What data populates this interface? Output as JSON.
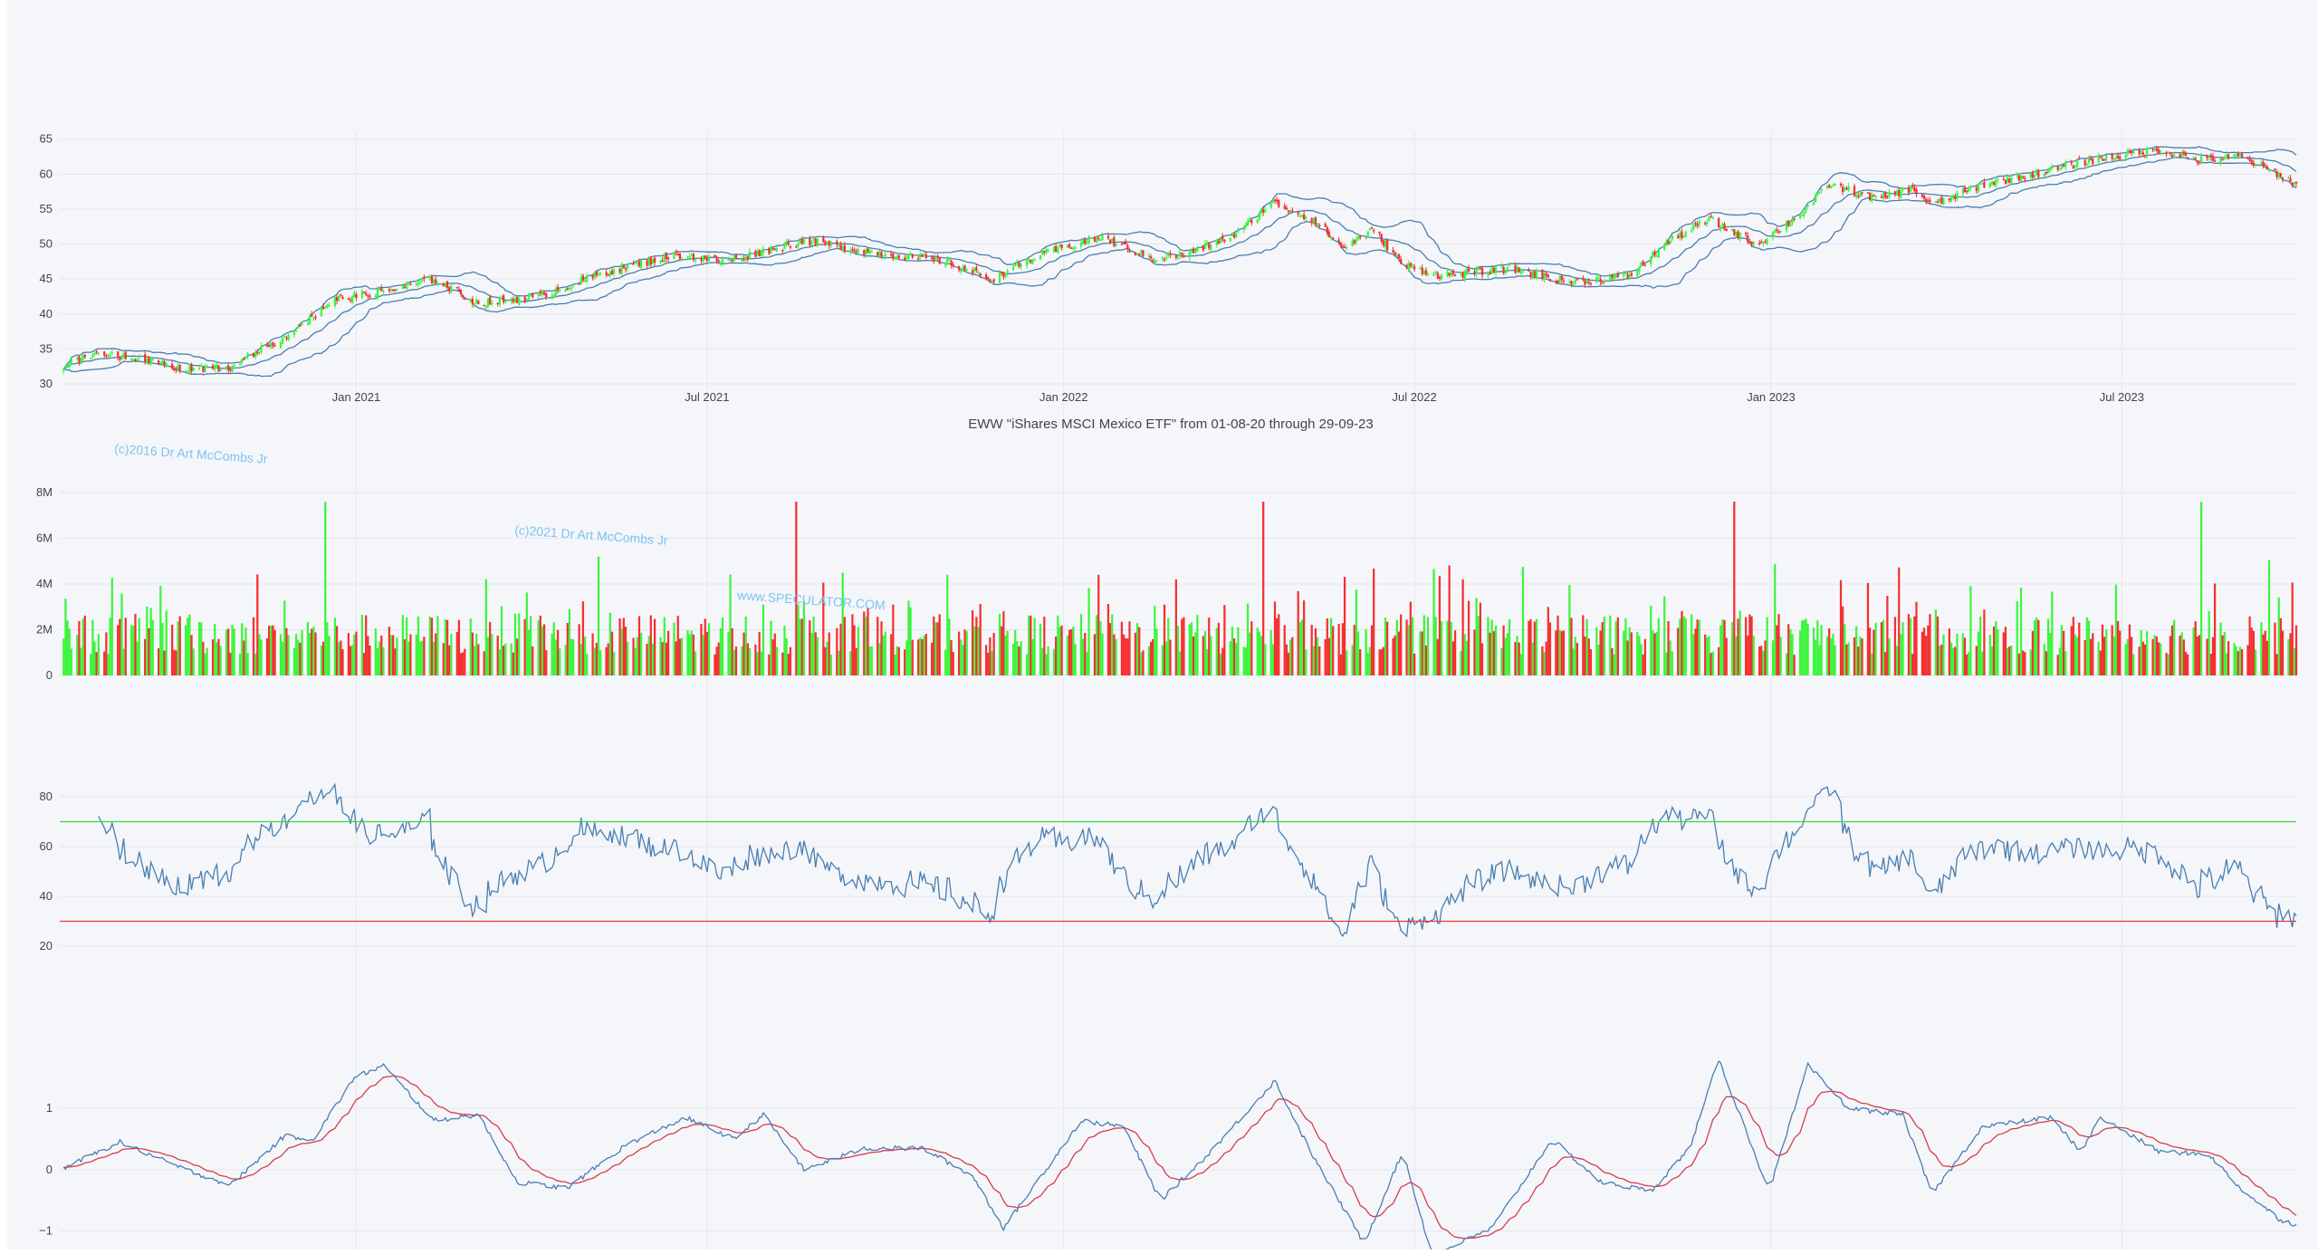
{
  "chart_data": {
    "type": "candlestick",
    "title": "EWW \"iShares MSCI Mexico ETF\" from 01-08-20 through 29-09-23",
    "x_range": [
      "2020-08-01",
      "2023-09-29"
    ],
    "x_tick_labels": [
      {
        "date": "2021-01-01",
        "label": "Jan 2021"
      },
      {
        "date": "2021-07-01",
        "label": "Jul 2021"
      },
      {
        "date": "2022-01-01",
        "label": "Jan 2022"
      },
      {
        "date": "2022-07-01",
        "label": "Jul 2022"
      },
      {
        "date": "2023-01-01",
        "label": "Jan 2023"
      },
      {
        "date": "2023-07-01",
        "label": "Jul 2023"
      }
    ],
    "watermarks": [
      "(c)2016 Dr Art McCombs Jr",
      "(c)2021 Dr Art McCombs Jr",
      "www.SPECULATOR.COM"
    ],
    "colors": {
      "up": "#3df53d",
      "down": "#f53030",
      "line": "#4a7eb0",
      "signal": "#d83c4a",
      "rsi_upper": "#3dd63d",
      "rsi_lower": "#e03a3a",
      "grid": "#e4e7ee",
      "background": "#f4f6fa"
    },
    "price_panel": {
      "ylim": [
        30,
        66
      ],
      "y_ticks": [
        "30",
        "35",
        "40",
        "45",
        "50",
        "55",
        "60",
        "65"
      ],
      "bollinger_bands": true,
      "close_anchors": [
        {
          "date": "2020-08-01",
          "value": 32.5
        },
        {
          "date": "2020-08-20",
          "value": 34.5
        },
        {
          "date": "2020-09-20",
          "value": 33.0
        },
        {
          "date": "2020-10-10",
          "value": 32.0
        },
        {
          "date": "2020-10-28",
          "value": 32.5
        },
        {
          "date": "2020-11-20",
          "value": 36.0
        },
        {
          "date": "2020-12-05",
          "value": 38.5
        },
        {
          "date": "2020-12-20",
          "value": 42.0
        },
        {
          "date": "2021-01-20",
          "value": 43.5
        },
        {
          "date": "2021-02-10",
          "value": 45.0
        },
        {
          "date": "2021-03-05",
          "value": 41.5
        },
        {
          "date": "2021-04-05",
          "value": 42.5
        },
        {
          "date": "2021-05-10",
          "value": 46.0
        },
        {
          "date": "2021-06-15",
          "value": 48.5
        },
        {
          "date": "2021-07-10",
          "value": 47.5
        },
        {
          "date": "2021-08-20",
          "value": 50.5
        },
        {
          "date": "2021-09-20",
          "value": 49.0
        },
        {
          "date": "2021-11-01",
          "value": 47.5
        },
        {
          "date": "2021-11-25",
          "value": 45.0
        },
        {
          "date": "2021-12-20",
          "value": 48.5
        },
        {
          "date": "2022-01-20",
          "value": 51.0
        },
        {
          "date": "2022-02-15",
          "value": 48.0
        },
        {
          "date": "2022-03-05",
          "value": 48.5
        },
        {
          "date": "2022-04-01",
          "value": 51.5
        },
        {
          "date": "2022-04-18",
          "value": 56.0
        },
        {
          "date": "2022-05-10",
          "value": 53.5
        },
        {
          "date": "2022-05-25",
          "value": 49.5
        },
        {
          "date": "2022-06-10",
          "value": 52.0
        },
        {
          "date": "2022-06-25",
          "value": 47.0
        },
        {
          "date": "2022-07-15",
          "value": 45.5
        },
        {
          "date": "2022-08-20",
          "value": 46.5
        },
        {
          "date": "2022-09-20",
          "value": 44.5
        },
        {
          "date": "2022-10-20",
          "value": 45.5
        },
        {
          "date": "2022-11-10",
          "value": 50.5
        },
        {
          "date": "2022-11-30",
          "value": 53.5
        },
        {
          "date": "2022-12-25",
          "value": 50.0
        },
        {
          "date": "2023-01-15",
          "value": 54.0
        },
        {
          "date": "2023-01-31",
          "value": 58.5
        },
        {
          "date": "2023-02-25",
          "value": 56.5
        },
        {
          "date": "2023-03-15",
          "value": 58.0
        },
        {
          "date": "2023-03-25",
          "value": 55.5
        },
        {
          "date": "2023-04-20",
          "value": 58.5
        },
        {
          "date": "2023-05-25",
          "value": 60.5
        },
        {
          "date": "2023-06-15",
          "value": 62.0
        },
        {
          "date": "2023-07-20",
          "value": 63.5
        },
        {
          "date": "2023-08-10",
          "value": 62.0
        },
        {
          "date": "2023-08-31",
          "value": 62.5
        },
        {
          "date": "2023-09-20",
          "value": 60.0
        },
        {
          "date": "2023-09-29",
          "value": 58.5
        }
      ]
    },
    "volume_panel": {
      "ylim": [
        0,
        8000000
      ],
      "y_ticks": [
        "0",
        "2M",
        "4M",
        "6M",
        "8M"
      ]
    },
    "rsi_panel": {
      "ylim": [
        16,
        88
      ],
      "y_ticks": [
        "20",
        "40",
        "60",
        "80"
      ],
      "upper_threshold": 70,
      "lower_threshold": 30
    },
    "oscillator_panel": {
      "ylim": [
        -1.3,
        1.8
      ],
      "y_ticks": [
        "−1",
        "0",
        "1"
      ],
      "anchors": [
        {
          "date": "2020-08-01",
          "value": 0.0
        },
        {
          "date": "2020-09-01",
          "value": 0.45
        },
        {
          "date": "2020-10-05",
          "value": 0.0
        },
        {
          "date": "2020-10-28",
          "value": -0.25
        },
        {
          "date": "2020-11-25",
          "value": 0.55
        },
        {
          "date": "2020-12-10",
          "value": 0.5
        },
        {
          "date": "2020-12-31",
          "value": 1.5
        },
        {
          "date": "2021-01-15",
          "value": 1.7
        },
        {
          "date": "2021-02-10",
          "value": 0.8
        },
        {
          "date": "2021-03-05",
          "value": 0.9
        },
        {
          "date": "2021-03-25",
          "value": -0.2
        },
        {
          "date": "2021-04-20",
          "value": -0.3
        },
        {
          "date": "2021-05-20",
          "value": 0.4
        },
        {
          "date": "2021-06-20",
          "value": 0.85
        },
        {
          "date": "2021-07-15",
          "value": 0.5
        },
        {
          "date": "2021-07-30",
          "value": 0.9
        },
        {
          "date": "2021-08-20",
          "value": 0.0
        },
        {
          "date": "2021-09-20",
          "value": 0.35
        },
        {
          "date": "2021-10-20",
          "value": 0.35
        },
        {
          "date": "2021-11-15",
          "value": -0.1
        },
        {
          "date": "2021-12-01",
          "value": -0.95
        },
        {
          "date": "2022-01-10",
          "value": 0.8
        },
        {
          "date": "2022-02-01",
          "value": 0.7
        },
        {
          "date": "2022-02-20",
          "value": -0.5
        },
        {
          "date": "2022-03-15",
          "value": 0.2
        },
        {
          "date": "2022-04-20",
          "value": 1.45
        },
        {
          "date": "2022-05-10",
          "value": 0.2
        },
        {
          "date": "2022-06-05",
          "value": -1.2
        },
        {
          "date": "2022-06-25",
          "value": 0.3
        },
        {
          "date": "2022-07-10",
          "value": -1.4
        },
        {
          "date": "2022-08-10",
          "value": -0.95
        },
        {
          "date": "2022-09-10",
          "value": 0.5
        },
        {
          "date": "2022-10-05",
          "value": -0.2
        },
        {
          "date": "2022-10-31",
          "value": -0.35
        },
        {
          "date": "2022-11-20",
          "value": 0.35
        },
        {
          "date": "2022-12-05",
          "value": 1.8
        },
        {
          "date": "2022-12-31",
          "value": -0.35
        },
        {
          "date": "2023-01-20",
          "value": 1.7
        },
        {
          "date": "2023-02-10",
          "value": 1.0
        },
        {
          "date": "2023-03-10",
          "value": 0.9
        },
        {
          "date": "2023-03-25",
          "value": -0.4
        },
        {
          "date": "2023-04-20",
          "value": 0.7
        },
        {
          "date": "2023-05-25",
          "value": 0.85
        },
        {
          "date": "2023-06-10",
          "value": 0.3
        },
        {
          "date": "2023-06-20",
          "value": 0.85
        },
        {
          "date": "2023-07-20",
          "value": 0.3
        },
        {
          "date": "2023-08-15",
          "value": 0.25
        },
        {
          "date": "2023-08-31",
          "value": -0.3
        },
        {
          "date": "2023-09-20",
          "value": -0.8
        },
        {
          "date": "2023-09-29",
          "value": -0.9
        }
      ]
    }
  }
}
